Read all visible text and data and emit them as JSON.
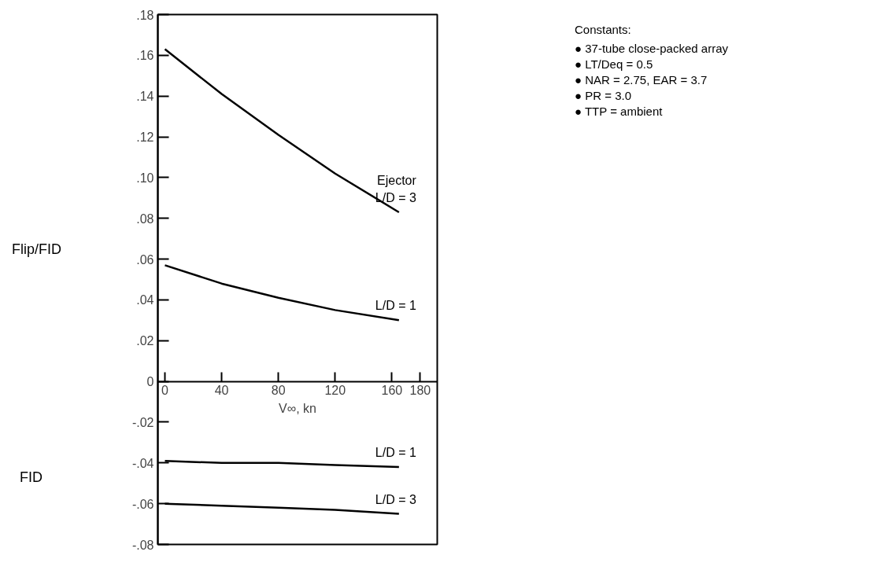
{
  "chart_data": {
    "type": "line",
    "xlabel": "V∞, kn",
    "ylabel": "Flip/FID",
    "xlim": [
      -5,
      192
    ],
    "xticks": [
      0,
      40,
      80,
      120,
      160,
      180
    ],
    "ylim": [
      -0.08,
      0.18
    ],
    "yticks": [
      {
        "value": -0.08,
        "label": "-.08"
      },
      {
        "value": -0.06,
        "label": "-.06"
      },
      {
        "value": -0.04,
        "label": "-.04"
      },
      {
        "value": -0.02,
        "label": "-.02"
      },
      0,
      {
        "value": 0.02,
        "label": ".02"
      },
      {
        "value": 0.04,
        "label": ".04"
      },
      {
        "value": 0.06,
        "label": ".06"
      },
      {
        "value": 0.08,
        "label": ".08"
      },
      {
        "value": 0.1,
        "label": ".10"
      },
      {
        "value": 0.12,
        "label": ".12"
      },
      {
        "value": 0.14,
        "label": ".14"
      },
      {
        "value": 0.16,
        "label": ".16"
      },
      {
        "value": 0.18,
        "label": ".18"
      }
    ],
    "x": [
      0,
      40,
      80,
      120,
      165
    ],
    "series": [
      {
        "name": "Ejector\nL/D = 3",
        "color": "#000000",
        "values": [
          0.163,
          0.141,
          0.121,
          0.102,
          0.083
        ]
      },
      {
        "name": "L/D = 1",
        "color": "#000000",
        "values": [
          0.057,
          0.048,
          0.041,
          0.035,
          0.03
        ]
      },
      {
        "name": "L/D = 1",
        "color": "#000000",
        "values": [
          -0.039,
          -0.04,
          -0.04,
          -0.041,
          -0.042
        ]
      },
      {
        "name": "L/D = 3",
        "color": "#000000",
        "values": [
          -0.06,
          -0.061,
          -0.062,
          -0.063,
          -0.065
        ]
      }
    ],
    "annotations": [
      "FID",
      "Constants:",
      "● 37-tube close-packed array",
      "● LT/Deq = 0.5",
      "● NAR = 2.75, EAR = 3.7",
      "● PR = 3.0",
      "● TTP = ambient"
    ],
    "grid": false,
    "legend": false,
    "marker": "none",
    "line_style": "solid"
  }
}
